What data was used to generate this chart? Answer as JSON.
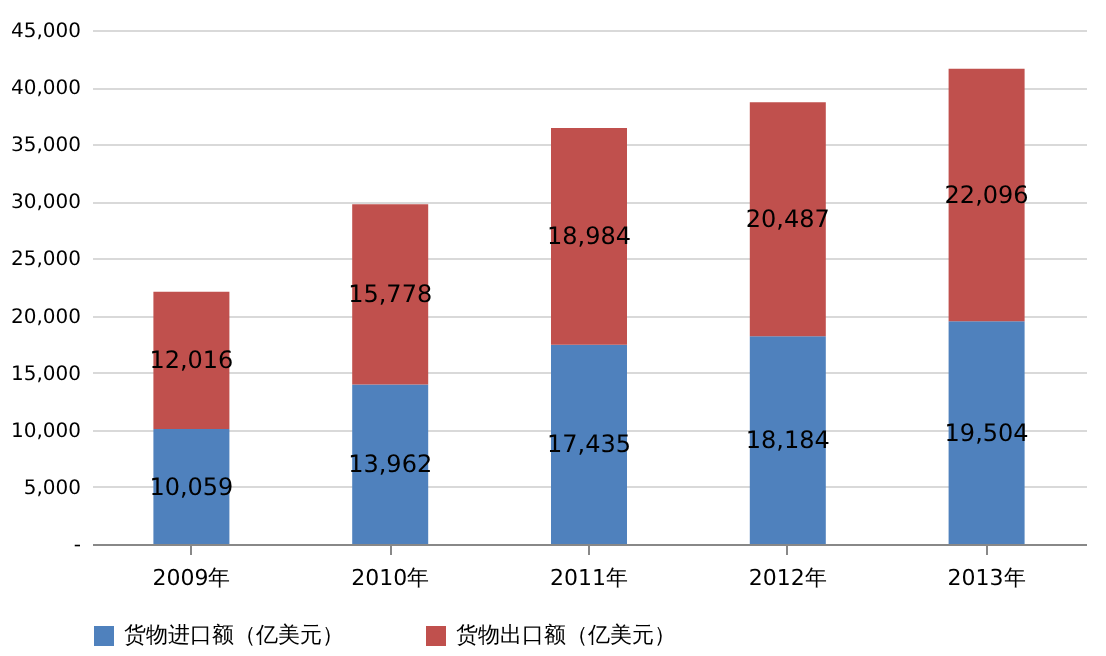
{
  "chart_data": {
    "type": "bar",
    "stacked": true,
    "categories": [
      "2009年",
      "2010年",
      "2011年",
      "2012年",
      "2013年"
    ],
    "series": [
      {
        "name": "货物进口额（亿美元）",
        "color": "#4f81bd",
        "values": [
          10059,
          13962,
          17435,
          18184,
          19504
        ],
        "value_labels": [
          "10,059",
          "13,962",
          "17,435",
          "18,184",
          "19,504"
        ]
      },
      {
        "name": "货物出口额（亿美元）",
        "color": "#c0504d",
        "values": [
          12016,
          15778,
          18984,
          20487,
          22096
        ],
        "value_labels": [
          "12,016",
          "15,778",
          "18,984",
          "20,487",
          "22,096"
        ]
      }
    ],
    "ylim": [
      0,
      45000
    ],
    "yticks": [
      {
        "value": 0,
        "label": "-"
      },
      {
        "value": 5000,
        "label": "5,000"
      },
      {
        "value": 10000,
        "label": "10,000"
      },
      {
        "value": 15000,
        "label": "15,000"
      },
      {
        "value": 20000,
        "label": "20,000"
      },
      {
        "value": 25000,
        "label": "25,000"
      },
      {
        "value": 30000,
        "label": "30,000"
      },
      {
        "value": 35000,
        "label": "35,000"
      },
      {
        "value": 40000,
        "label": "40,000"
      },
      {
        "value": 45000,
        "label": "45,000"
      }
    ],
    "grid": "y",
    "legend": "bottom"
  }
}
